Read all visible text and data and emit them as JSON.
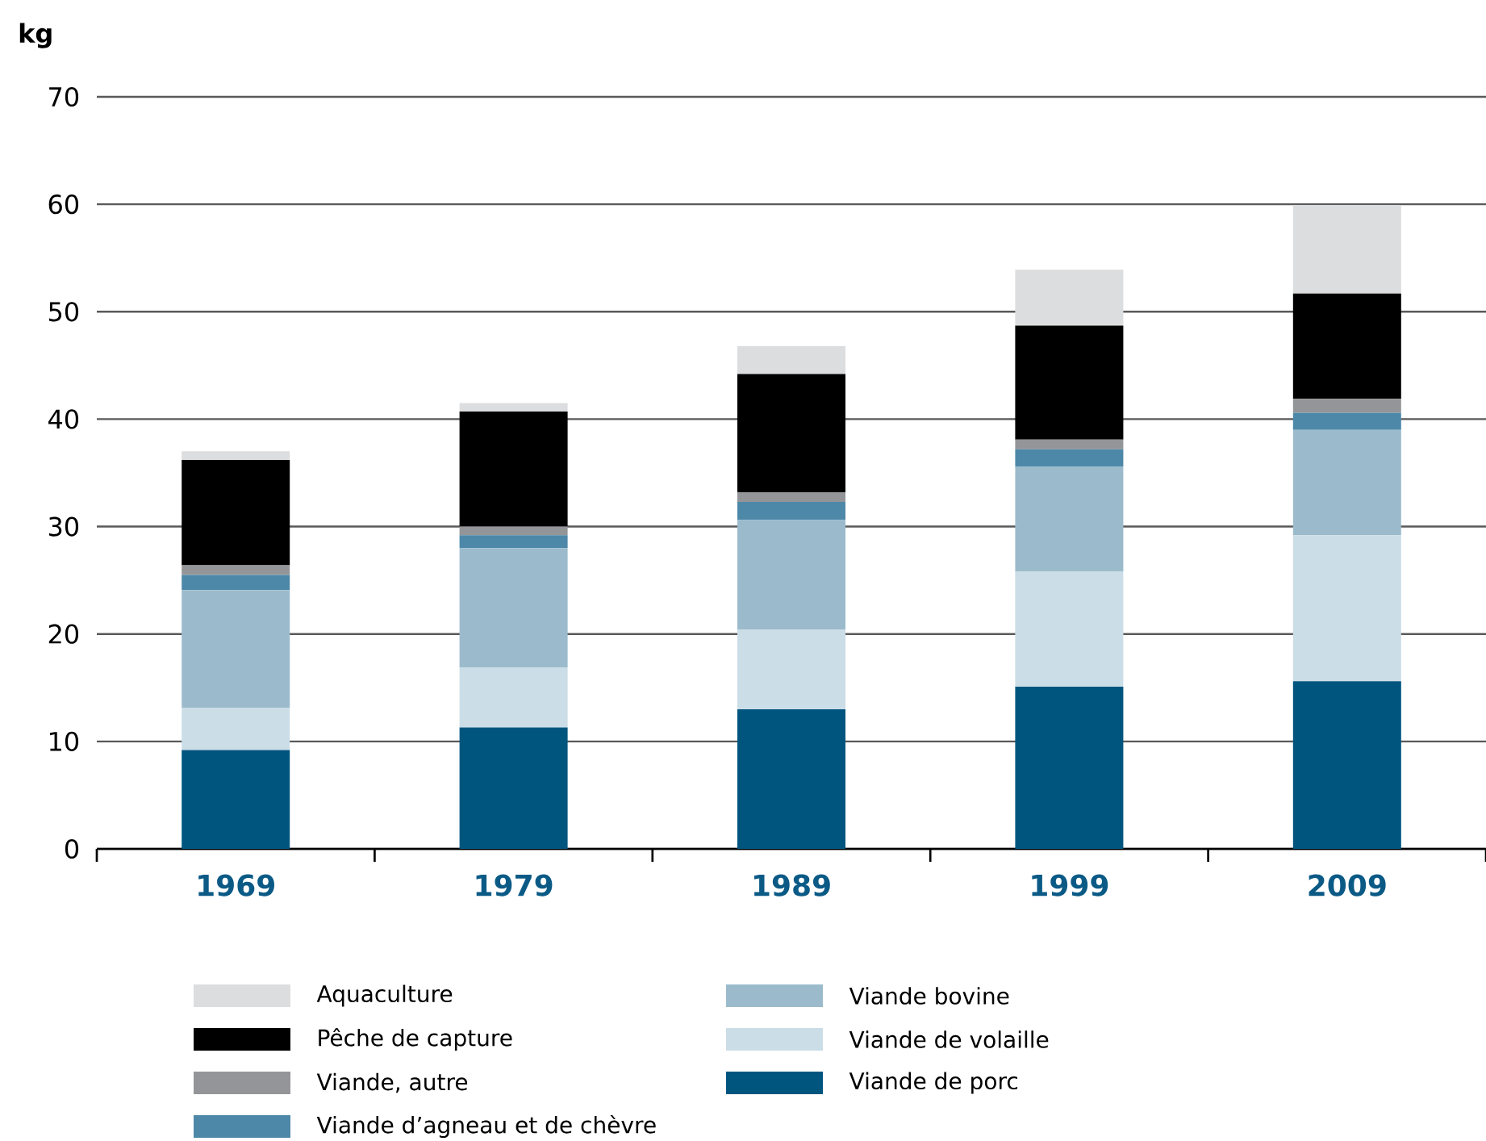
{
  "chart_data": {
    "type": "bar",
    "stacked": true,
    "ylabel": "kg",
    "categories": [
      "1969",
      "1979",
      "1989",
      "1999",
      "2009"
    ],
    "series": [
      {
        "name": "Viande de porc",
        "color": "#00557f",
        "values": [
          9.2,
          11.3,
          13.0,
          15.1,
          15.6
        ]
      },
      {
        "name": "Viande de volaille",
        "color": "#cbdde6",
        "values": [
          3.9,
          5.6,
          7.4,
          10.7,
          13.6
        ]
      },
      {
        "name": "Viande bovine",
        "color": "#9bbbcc",
        "values": [
          11.0,
          11.1,
          10.2,
          9.8,
          9.8
        ]
      },
      {
        "name": "Viande d’agneau et de chèvre",
        "color": "#4d88a8",
        "values": [
          1.4,
          1.2,
          1.7,
          1.6,
          1.6
        ]
      },
      {
        "name": "Viande, autre",
        "color": "#939598",
        "values": [
          0.9,
          0.8,
          0.9,
          0.9,
          1.3
        ]
      },
      {
        "name": "Pêche de capture",
        "color": "#000000",
        "values": [
          9.8,
          10.7,
          11.0,
          10.6,
          9.8
        ]
      },
      {
        "name": "Aquaculture",
        "color": "#dcdddf",
        "values": [
          0.8,
          0.8,
          2.6,
          5.2,
          8.2
        ]
      }
    ],
    "ylim": [
      0,
      70
    ],
    "yticks": [
      0,
      10,
      20,
      30,
      40,
      50,
      60,
      70
    ],
    "grid": "y",
    "legend": "bottom"
  }
}
